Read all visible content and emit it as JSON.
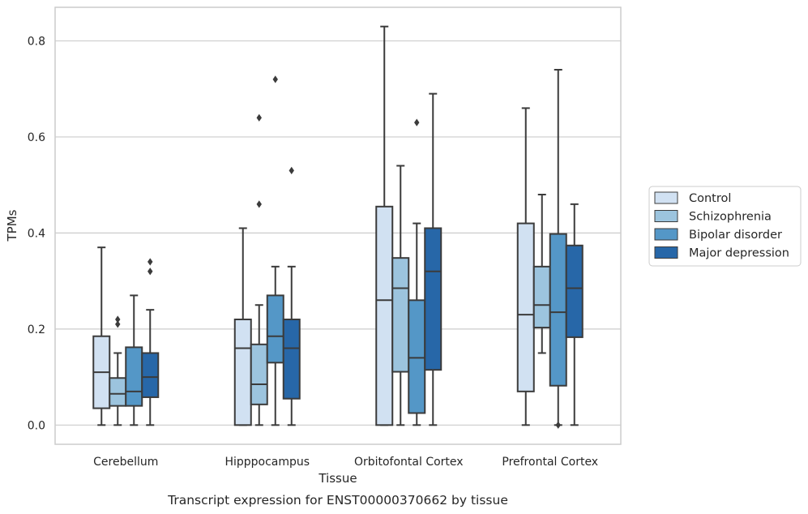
{
  "chart_data": {
    "type": "box",
    "title": "",
    "caption": "Transcript expression for ENST00000370662 by tissue",
    "xlabel": "Tissue",
    "ylabel": "TPMs",
    "ylim": [
      -0.04,
      0.87
    ],
    "yticks": [
      0.0,
      0.2,
      0.4,
      0.6,
      0.8
    ],
    "ytick_labels": [
      "0.0",
      "0.2",
      "0.4",
      "0.6",
      "0.8"
    ],
    "grid": "horizontal",
    "legend_position": "right",
    "categories": [
      "Cerebellum",
      "Hipppocampus",
      "Orbitofontal Cortex",
      "Prefrontal Cortex"
    ],
    "series": [
      {
        "name": "Control",
        "color": "#d1e1f2",
        "boxes": [
          {
            "min": 0.0,
            "q1": 0.035,
            "median": 0.11,
            "q3": 0.185,
            "max": 0.37,
            "outliers": []
          },
          {
            "min": 0.0,
            "q1": 0.0,
            "median": 0.16,
            "q3": 0.22,
            "max": 0.41,
            "outliers": []
          },
          {
            "min": 0.0,
            "q1": 0.0,
            "median": 0.26,
            "q3": 0.455,
            "max": 0.83,
            "outliers": []
          },
          {
            "min": 0.0,
            "q1": 0.07,
            "median": 0.23,
            "q3": 0.42,
            "max": 0.66,
            "outliers": []
          }
        ]
      },
      {
        "name": "Schizophrenia",
        "color": "#9cc4de",
        "boxes": [
          {
            "min": 0.0,
            "q1": 0.04,
            "median": 0.065,
            "q3": 0.098,
            "max": 0.15,
            "outliers": [
              0.21,
              0.22
            ]
          },
          {
            "min": 0.0,
            "q1": 0.043,
            "median": 0.085,
            "q3": 0.168,
            "max": 0.25,
            "outliers": [
              0.46,
              0.64
            ]
          },
          {
            "min": 0.0,
            "q1": 0.111,
            "median": 0.285,
            "q3": 0.348,
            "max": 0.54,
            "outliers": []
          },
          {
            "min": 0.15,
            "q1": 0.203,
            "median": 0.25,
            "q3": 0.33,
            "max": 0.48,
            "outliers": []
          }
        ]
      },
      {
        "name": "Bipolar disorder",
        "color": "#5497c7",
        "boxes": [
          {
            "min": 0.0,
            "q1": 0.04,
            "median": 0.07,
            "q3": 0.162,
            "max": 0.27,
            "outliers": []
          },
          {
            "min": 0.0,
            "q1": 0.13,
            "median": 0.185,
            "q3": 0.27,
            "max": 0.33,
            "outliers": [
              0.72
            ]
          },
          {
            "min": 0.0,
            "q1": 0.025,
            "median": 0.14,
            "q3": 0.26,
            "max": 0.42,
            "outliers": [
              0.63
            ]
          },
          {
            "min": 0.0,
            "q1": 0.082,
            "median": 0.235,
            "q3": 0.398,
            "max": 0.74,
            "outliers": [
              0.0
            ]
          }
        ]
      },
      {
        "name": "Major depression",
        "color": "#2767a8",
        "boxes": [
          {
            "min": 0.0,
            "q1": 0.058,
            "median": 0.1,
            "q3": 0.15,
            "max": 0.24,
            "outliers": [
              0.32,
              0.34
            ]
          },
          {
            "min": 0.0,
            "q1": 0.055,
            "median": 0.16,
            "q3": 0.22,
            "max": 0.33,
            "outliers": [
              0.53
            ]
          },
          {
            "min": 0.0,
            "q1": 0.115,
            "median": 0.32,
            "q3": 0.41,
            "max": 0.69,
            "outliers": []
          },
          {
            "min": 0.0,
            "q1": 0.183,
            "median": 0.285,
            "q3": 0.374,
            "max": 0.46,
            "outliers": []
          }
        ]
      }
    ]
  }
}
